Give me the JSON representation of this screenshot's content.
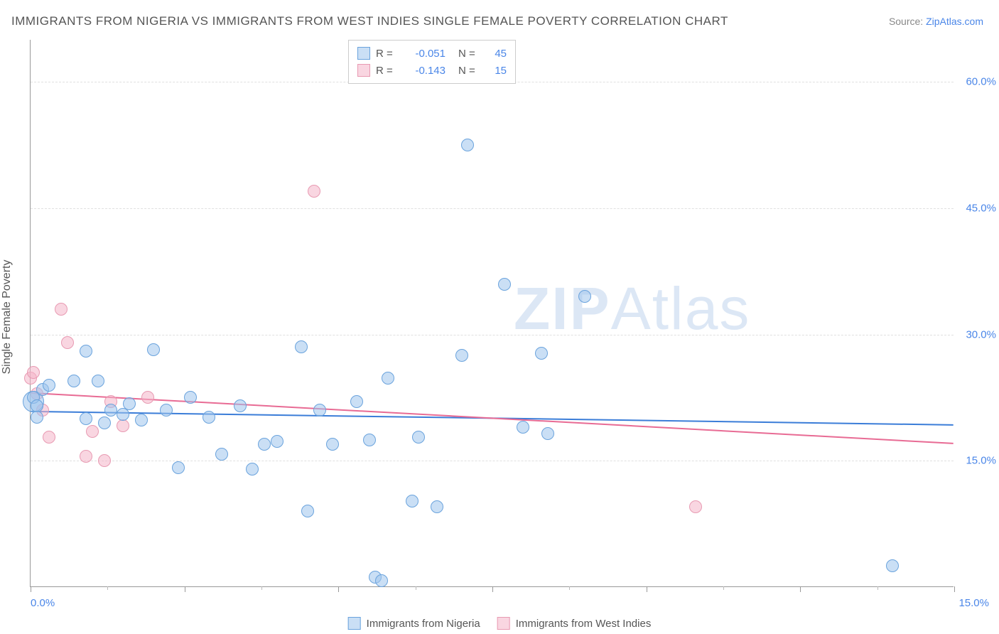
{
  "title": "IMMIGRANTS FROM NIGERIA VS IMMIGRANTS FROM WEST INDIES SINGLE FEMALE POVERTY CORRELATION CHART",
  "source_prefix": "Source: ",
  "source_link": "ZipAtlas.com",
  "y_axis_title": "Single Female Poverty",
  "watermark_text_bold": "ZIP",
  "watermark_text_rest": "Atlas",
  "chart": {
    "type": "scatter",
    "xlim": [
      0,
      15
    ],
    "ylim": [
      0,
      65
    ],
    "x_ticks_labeled": [
      {
        "v": 0,
        "label": "0.0%"
      },
      {
        "v": 15,
        "label": "15.0%"
      }
    ],
    "x_ticks_major": [
      0,
      2.5,
      5,
      7.5,
      10,
      12.5,
      15
    ],
    "x_ticks_minor": [
      1.25,
      3.75,
      6.25,
      8.75,
      11.25,
      13.75
    ],
    "y_ticks": [
      {
        "v": 15,
        "label": "15.0%"
      },
      {
        "v": 30,
        "label": "30.0%"
      },
      {
        "v": 45,
        "label": "45.0%"
      },
      {
        "v": 60,
        "label": "60.0%"
      }
    ],
    "background_color": "#ffffff",
    "grid_color": "#e0e0e0",
    "axis_color": "#999999",
    "marker_radius": 9,
    "marker_stroke": 1.2,
    "series": [
      {
        "name": "Immigrants from Nigeria",
        "fill": "rgba(158,196,237,0.55)",
        "stroke": "#6aa3dd",
        "r": -0.051,
        "n": 45,
        "trend": {
          "y_at_xmin": 20.8,
          "y_at_xmax": 19.2,
          "color": "#3b7dd8",
          "width": 2
        },
        "points": [
          [
            0.05,
            22.5
          ],
          [
            0.1,
            21.5
          ],
          [
            0.1,
            20.2
          ],
          [
            0.2,
            23.5
          ],
          [
            0.3,
            24.0
          ],
          [
            0.7,
            24.5
          ],
          [
            0.9,
            20.0
          ],
          [
            0.9,
            28.0
          ],
          [
            1.1,
            24.5
          ],
          [
            1.2,
            19.5
          ],
          [
            1.3,
            21.0
          ],
          [
            1.5,
            20.5
          ],
          [
            1.6,
            21.8
          ],
          [
            1.8,
            19.8
          ],
          [
            2.0,
            28.2
          ],
          [
            2.2,
            21.0
          ],
          [
            2.4,
            14.2
          ],
          [
            2.6,
            22.5
          ],
          [
            2.9,
            20.2
          ],
          [
            3.1,
            15.8
          ],
          [
            3.4,
            21.5
          ],
          [
            3.6,
            14.0
          ],
          [
            3.8,
            17.0
          ],
          [
            4.0,
            17.3
          ],
          [
            4.4,
            28.5
          ],
          [
            4.5,
            9.0
          ],
          [
            4.7,
            21.0
          ],
          [
            4.9,
            17.0
          ],
          [
            5.3,
            22.0
          ],
          [
            5.5,
            17.5
          ],
          [
            5.6,
            1.2
          ],
          [
            5.7,
            0.8
          ],
          [
            5.8,
            24.8
          ],
          [
            6.2,
            10.2
          ],
          [
            6.3,
            17.8
          ],
          [
            6.6,
            9.5
          ],
          [
            7.0,
            27.5
          ],
          [
            7.1,
            52.5
          ],
          [
            7.7,
            36.0
          ],
          [
            8.0,
            19.0
          ],
          [
            8.3,
            27.8
          ],
          [
            8.4,
            18.2
          ],
          [
            9.0,
            34.5
          ],
          [
            14.0,
            2.5
          ]
        ],
        "big_point": {
          "xy": [
            0.05,
            22.0
          ],
          "radius": 15
        }
      },
      {
        "name": "Immigrants from West Indies",
        "fill": "rgba(244,180,200,0.55)",
        "stroke": "#e89ab2",
        "r": -0.143,
        "n": 15,
        "trend": {
          "y_at_xmin": 23.0,
          "y_at_xmax": 17.0,
          "color": "#e86b94",
          "width": 2
        },
        "points": [
          [
            0.0,
            24.8
          ],
          [
            0.05,
            25.5
          ],
          [
            0.1,
            23.0
          ],
          [
            0.2,
            21.0
          ],
          [
            0.3,
            17.8
          ],
          [
            0.5,
            33.0
          ],
          [
            0.6,
            29.0
          ],
          [
            0.9,
            15.5
          ],
          [
            1.0,
            18.5
          ],
          [
            1.2,
            15.0
          ],
          [
            1.3,
            22.0
          ],
          [
            1.5,
            19.2
          ],
          [
            1.9,
            22.5
          ],
          [
            4.6,
            47.0
          ],
          [
            10.8,
            9.5
          ]
        ]
      }
    ]
  },
  "legend_top": {
    "r_label": "R =",
    "n_label": "N ="
  },
  "colors": {
    "title": "#555555",
    "source": "#888888",
    "link": "#4a86e8",
    "tick_label": "#4a86e8",
    "watermark": "rgba(155,185,225,0.35)"
  }
}
